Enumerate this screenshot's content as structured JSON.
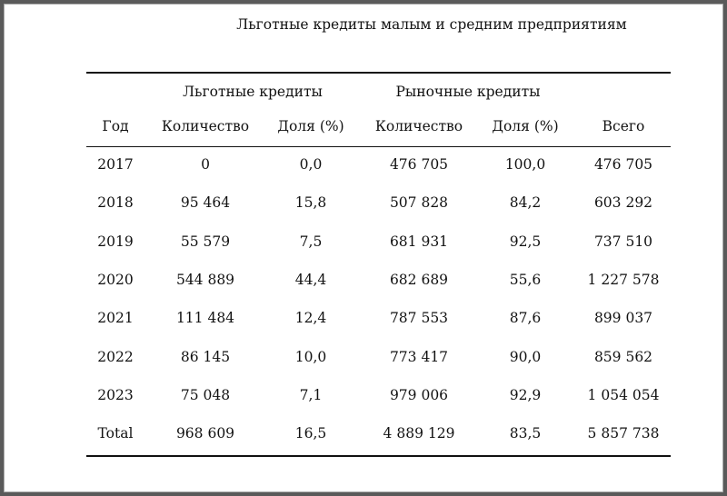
{
  "title": "Льготные кредиты малым и средним предприятиям",
  "header": {
    "group1": "Льготные кредиты",
    "group2": "Рыночные кредиты",
    "columns": [
      "Год",
      "Количество",
      "Доля (%)",
      "Количество",
      "Доля (%)",
      "Всего"
    ]
  },
  "rows": [
    [
      "2017",
      "0",
      "0,0",
      "476 705",
      "100,0",
      "476 705"
    ],
    [
      "2018",
      "95 464",
      "15,8",
      "507 828",
      "84,2",
      "603 292"
    ],
    [
      "2019",
      "55 579",
      "7,5",
      "681 931",
      "92,5",
      "737 510"
    ],
    [
      "2020",
      "544 889",
      "44,4",
      "682 689",
      "55,6",
      "1 227 578"
    ],
    [
      "2021",
      "111 484",
      "12,4",
      "787 553",
      "87,6",
      "899 037"
    ],
    [
      "2022",
      "86 145",
      "10,0",
      "773 417",
      "90,0",
      "859 562"
    ],
    [
      "2023",
      "75 048",
      "7,1",
      "979 006",
      "92,9",
      "1 054 054"
    ],
    [
      "Total",
      "968 609",
      "16,5",
      "4 889 129",
      "83,5",
      "5 857 738"
    ]
  ]
}
